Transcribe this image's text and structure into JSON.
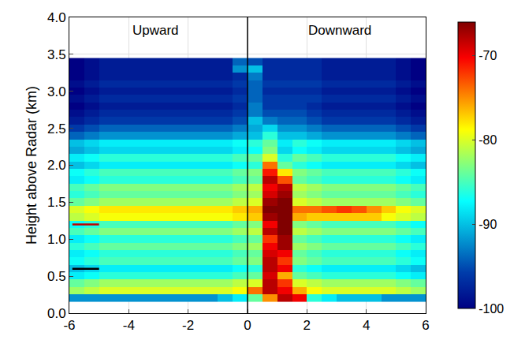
{
  "chart_data": {
    "type": "heatmap",
    "y_label": "Height above Radar (km)",
    "annotations": [
      {
        "text": "Upward",
        "x": -3.1,
        "y": 3.82
      },
      {
        "text": "Downward",
        "x": 3.1,
        "y": 3.82
      }
    ],
    "xlim": [
      -6,
      6
    ],
    "xticks": [
      -6,
      -4,
      -2,
      0,
      2,
      4,
      6
    ],
    "ylim": [
      0,
      4
    ],
    "yticks": [
      {
        "value": 0,
        "label": "0.0"
      },
      0.5,
      {
        "value": 1,
        "label": "1.0"
      },
      1.5,
      {
        "value": 2,
        "label": "2.0"
      },
      2.5,
      {
        "value": 3,
        "label": "3.0"
      },
      3.5,
      {
        "value": 4,
        "label": "4.0"
      }
    ],
    "grid": true,
    "colorbar_range": [
      -100,
      -66
    ],
    "colorbar_ticks": [
      -100,
      -90,
      -80,
      -70
    ],
    "vlines": [
      0
    ],
    "marks": [
      {
        "y": 1.2,
        "x": [
          -5.9,
          -5.0
        ],
        "color": "#c00000"
      },
      {
        "y": 0.6,
        "x": [
          -5.9,
          -5.0
        ],
        "color": "#000000"
      }
    ],
    "x": [
      -5.75,
      -5.25,
      -4.75,
      -4.25,
      -3.75,
      -3.25,
      -2.75,
      -2.25,
      -1.75,
      -1.25,
      -0.75,
      -0.25,
      0.25,
      0.75,
      1.25,
      1.75,
      2.25,
      2.75,
      3.25,
      3.75,
      4.25,
      4.75,
      5.25,
      5.75
    ],
    "y": [
      0.2,
      0.3,
      0.4,
      0.5,
      0.6,
      0.7,
      0.8,
      0.9,
      1.0,
      1.1,
      1.2,
      1.3,
      1.4,
      1.5,
      1.6,
      1.7,
      1.8,
      1.9,
      2.0,
      2.1,
      2.2,
      2.3,
      2.4,
      2.5,
      2.6,
      2.7,
      2.8,
      2.9,
      3.0,
      3.1,
      3.2,
      3.3,
      3.4
    ],
    "z": [
      [
        -92,
        -92,
        -92,
        -92,
        -92,
        -92,
        -92,
        -92,
        -92,
        -92,
        -90,
        -88,
        -84,
        -75,
        -68,
        -70,
        -86,
        -88,
        -90,
        -90,
        -90,
        -92,
        -92,
        -92
      ],
      [
        -82,
        -81,
        -80,
        -80,
        -80,
        -80,
        -80,
        -80,
        -80,
        -80,
        -80,
        -79,
        -74,
        -68,
        -70,
        -76,
        -79,
        -80,
        -80,
        -80,
        -80,
        -80,
        -81,
        -82
      ],
      [
        -84,
        -83,
        -82,
        -82,
        -82,
        -82,
        -82,
        -82,
        -82,
        -82,
        -82,
        -81,
        -80,
        -68,
        -72,
        -80,
        -81,
        -82,
        -82,
        -82,
        -82,
        -82,
        -83,
        -84
      ],
      [
        -88,
        -87,
        -86,
        -86,
        -86,
        -86,
        -86,
        -86,
        -86,
        -86,
        -86,
        -85,
        -84,
        -69,
        -76,
        -84,
        -85,
        -86,
        -86,
        -86,
        -86,
        -86,
        -87,
        -88
      ],
      [
        -90,
        -89,
        -88,
        -88,
        -88,
        -88,
        -88,
        -88,
        -88,
        -88,
        -88,
        -87,
        -86,
        -68,
        -70,
        -86,
        -87,
        -88,
        -88,
        -88,
        -88,
        -88,
        -89,
        -90
      ],
      [
        -87,
        -86,
        -85,
        -85,
        -85,
        -85,
        -85,
        -85,
        -85,
        -85,
        -85,
        -84,
        -83,
        -68,
        -72,
        -83,
        -84,
        -85,
        -85,
        -85,
        -85,
        -85,
        -86,
        -87
      ],
      [
        -88,
        -87,
        -86,
        -86,
        -86,
        -86,
        -86,
        -86,
        -86,
        -86,
        -86,
        -85,
        -84,
        -69,
        -70,
        -84,
        -85,
        -86,
        -86,
        -86,
        -86,
        -86,
        -87,
        -88
      ],
      [
        -86,
        -85,
        -84,
        -84,
        -84,
        -84,
        -84,
        -84,
        -84,
        -84,
        -84,
        -83,
        -82,
        -70,
        -67,
        -82,
        -83,
        -84,
        -84,
        -84,
        -84,
        -84,
        -85,
        -86
      ],
      [
        -88,
        -87,
        -86,
        -86,
        -86,
        -86,
        -86,
        -86,
        -86,
        -86,
        -86,
        -85,
        -84,
        -72,
        -67,
        -84,
        -85,
        -86,
        -86,
        -86,
        -86,
        -86,
        -87,
        -88
      ],
      [
        -85,
        -84,
        -83,
        -83,
        -83,
        -83,
        -83,
        -83,
        -83,
        -83,
        -83,
        -82,
        -81,
        -68,
        -66,
        -81,
        -82,
        -83,
        -83,
        -83,
        -83,
        -83,
        -84,
        -85
      ],
      [
        -87,
        -86,
        -85,
        -85,
        -85,
        -85,
        -85,
        -85,
        -85,
        -85,
        -85,
        -84,
        -83,
        -70,
        -66,
        -83,
        -84,
        -85,
        -85,
        -85,
        -85,
        -85,
        -86,
        -87
      ],
      [
        -81,
        -80,
        -79,
        -79,
        -79,
        -79,
        -79,
        -79,
        -79,
        -79,
        -79,
        -78,
        -77,
        -67,
        -65,
        -76,
        -77,
        -77,
        -77,
        -77,
        -77,
        -79,
        -80,
        -81
      ],
      [
        -80,
        -79,
        -78,
        -78,
        -78,
        -78,
        -78,
        -78,
        -78,
        -78,
        -78,
        -77,
        -76,
        -66,
        -65,
        -74,
        -74,
        -73,
        -72,
        -73,
        -75,
        -77,
        -79,
        -80
      ],
      [
        -84,
        -83,
        -82,
        -82,
        -82,
        -82,
        -82,
        -82,
        -82,
        -82,
        -82,
        -81,
        -80,
        -67,
        -66,
        -80,
        -81,
        -82,
        -82,
        -82,
        -82,
        -82,
        -83,
        -84
      ],
      [
        -86,
        -85,
        -84,
        -84,
        -84,
        -84,
        -84,
        -84,
        -84,
        -84,
        -84,
        -83,
        -82,
        -69,
        -67,
        -82,
        -83,
        -84,
        -84,
        -84,
        -84,
        -84,
        -85,
        -86
      ],
      [
        -85,
        -84,
        -83,
        -83,
        -83,
        -83,
        -83,
        -83,
        -83,
        -83,
        -83,
        -82,
        -81,
        -70,
        -68,
        -81,
        -82,
        -83,
        -83,
        -83,
        -83,
        -83,
        -84,
        -85
      ],
      [
        -88,
        -87,
        -86,
        -86,
        -86,
        -86,
        -86,
        -86,
        -86,
        -86,
        -86,
        -85,
        -84,
        -68,
        -73,
        -84,
        -85,
        -86,
        -86,
        -86,
        -86,
        -86,
        -87,
        -88
      ],
      [
        -87,
        -86,
        -85,
        -85,
        -85,
        -85,
        -85,
        -85,
        -85,
        -85,
        -85,
        -84,
        -83,
        -71,
        -78,
        -83,
        -84,
        -85,
        -85,
        -85,
        -85,
        -85,
        -86,
        -87
      ],
      [
        -90,
        -89,
        -88,
        -88,
        -88,
        -88,
        -88,
        -88,
        -88,
        -88,
        -88,
        -87,
        -86,
        -74,
        -84,
        -86,
        -87,
        -88,
        -88,
        -88,
        -88,
        -88,
        -89,
        -90
      ],
      [
        -88,
        -87,
        -86,
        -86,
        -86,
        -86,
        -86,
        -86,
        -86,
        -86,
        -86,
        -85,
        -84,
        -80,
        -86,
        -84,
        -85,
        -86,
        -86,
        -86,
        -86,
        -86,
        -87,
        -88
      ],
      [
        -91,
        -90,
        -89,
        -89,
        -89,
        -89,
        -89,
        -89,
        -89,
        -89,
        -89,
        -88,
        -87,
        -83,
        -89,
        -87,
        -88,
        -89,
        -89,
        -89,
        -89,
        -89,
        -90,
        -91
      ],
      [
        -90,
        -89,
        -88,
        -88,
        -88,
        -88,
        -88,
        -88,
        -88,
        -88,
        -88,
        -87,
        -86,
        -84,
        -88,
        -86,
        -87,
        -88,
        -88,
        -88,
        -88,
        -88,
        -89,
        -90
      ],
      [
        -94,
        -93,
        -92,
        -92,
        -92,
        -92,
        -92,
        -92,
        -92,
        -92,
        -92,
        -91,
        -90,
        -86,
        -90,
        -90,
        -91,
        -92,
        -92,
        -92,
        -92,
        -92,
        -93,
        -94
      ],
      [
        -96,
        -95,
        -94,
        -94,
        -94,
        -94,
        -94,
        -94,
        -94,
        -94,
        -94,
        -93,
        -91,
        -89,
        -92,
        -92,
        -93,
        -94,
        -94,
        -94,
        -94,
        -94,
        -95,
        -96
      ],
      [
        -98,
        -97,
        -96,
        -96,
        -96,
        -96,
        -96,
        -96,
        -96,
        -96,
        -96,
        -95,
        -90,
        -93,
        -94,
        -94,
        -95,
        -96,
        -96,
        -96,
        -96,
        -96,
        -97,
        -98
      ],
      [
        -99,
        -98,
        -97,
        -97,
        -97,
        -97,
        -97,
        -97,
        -97,
        -97,
        -97,
        -96,
        -93,
        -95,
        -95,
        -95,
        -96,
        -97,
        -97,
        -97,
        -97,
        -97,
        -98,
        -99
      ],
      [
        -100,
        -99,
        -98,
        -98,
        -98,
        -98,
        -98,
        -98,
        -98,
        -98,
        -98,
        -97,
        -93,
        -96,
        -96,
        -96,
        -97,
        -98,
        -98,
        -98,
        -98,
        -98,
        -99,
        -100
      ],
      [
        -99,
        -98,
        -97,
        -97,
        -97,
        -97,
        -97,
        -97,
        -97,
        -97,
        -97,
        -96,
        -94,
        -96,
        -96,
        -96,
        -96,
        -97,
        -97,
        -97,
        -97,
        -97,
        -98,
        -99
      ],
      [
        -100,
        -99,
        -98,
        -98,
        -98,
        -98,
        -98,
        -98,
        -98,
        -98,
        -98,
        -97,
        -94,
        -97,
        -97,
        -97,
        -97,
        -98,
        -98,
        -98,
        -98,
        -98,
        -99,
        -100
      ],
      [
        -99,
        -98,
        -97,
        -97,
        -97,
        -97,
        -97,
        -97,
        -97,
        -97,
        -97,
        -96,
        -94,
        -96,
        -96,
        -96,
        -96,
        -97,
        -97,
        -97,
        -97,
        -97,
        -98,
        -99
      ],
      [
        -100,
        -99,
        -98,
        -98,
        -98,
        -98,
        -98,
        -98,
        -98,
        -98,
        -98,
        -97,
        -93,
        -97,
        -97,
        -97,
        -97,
        -98,
        -98,
        -98,
        -98,
        -98,
        -99,
        -100
      ],
      [
        -100,
        -99,
        -98,
        -98,
        -98,
        -98,
        -98,
        -98,
        -98,
        -98,
        -98,
        -92,
        -90,
        -97,
        -97,
        -97,
        -97,
        -98,
        -98,
        -98,
        -98,
        -98,
        -99,
        -100
      ],
      [
        -100,
        -99,
        -98,
        -98,
        -98,
        -98,
        -98,
        -98,
        -98,
        -98,
        -98,
        -94,
        -95,
        -97,
        -97,
        -97,
        -97,
        -98,
        -98,
        -98,
        -98,
        -98,
        -99,
        -100
      ]
    ]
  }
}
